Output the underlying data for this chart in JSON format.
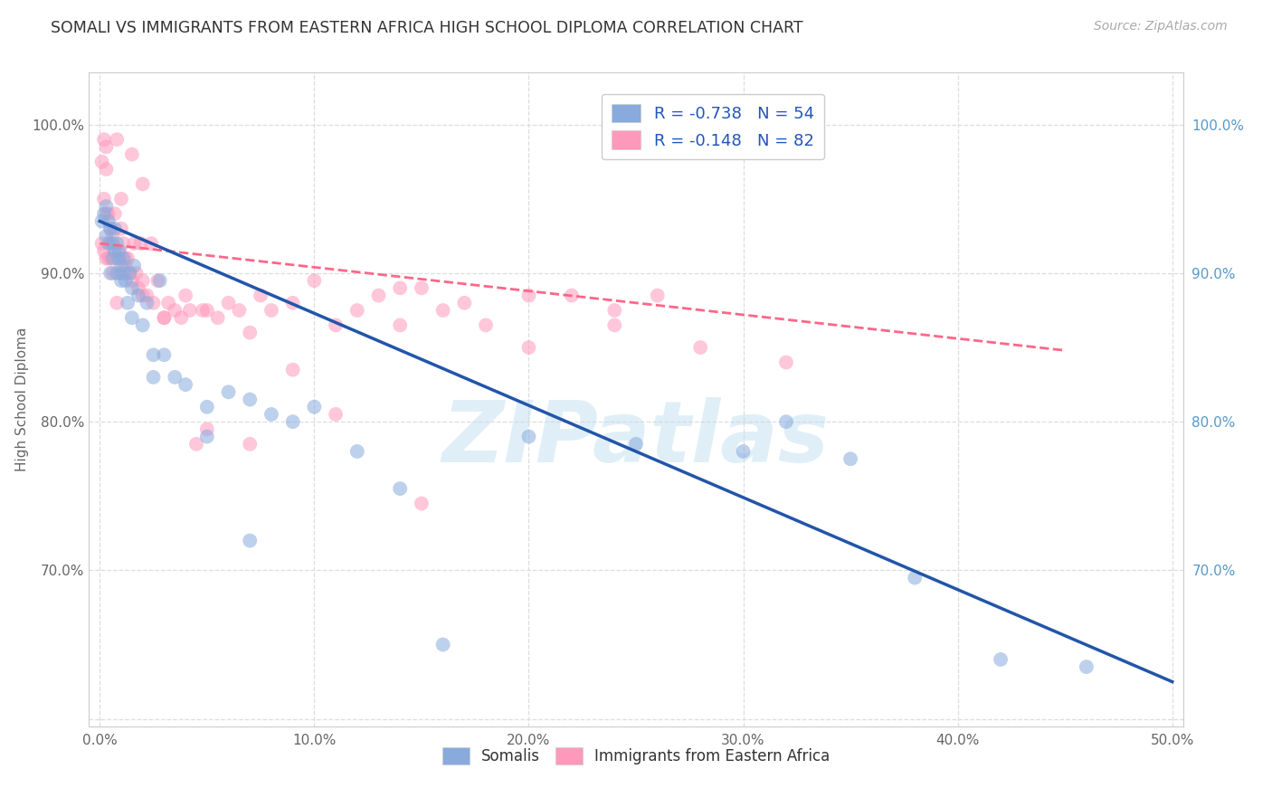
{
  "title": "SOMALI VS IMMIGRANTS FROM EASTERN AFRICA HIGH SCHOOL DIPLOMA CORRELATION CHART",
  "source": "Source: ZipAtlas.com",
  "ylabel": "High School Diploma",
  "x_tick_labels": [
    "0.0%",
    "10.0%",
    "20.0%",
    "30.0%",
    "40.0%",
    "50.0%"
  ],
  "x_tick_values": [
    0.0,
    0.1,
    0.2,
    0.3,
    0.4,
    0.5
  ],
  "y_tick_labels": [
    "",
    "70.0%",
    "80.0%",
    "90.0%",
    "100.0%"
  ],
  "y_tick_values": [
    0.6,
    0.7,
    0.8,
    0.9,
    1.0
  ],
  "xlim": [
    -0.005,
    0.505
  ],
  "ylim": [
    0.595,
    1.035
  ],
  "legend_r_blue": "-0.738",
  "legend_n_blue": "54",
  "legend_r_pink": "-0.148",
  "legend_n_pink": "82",
  "blue_scatter_color": "#88AADD",
  "pink_scatter_color": "#FF99BB",
  "blue_line_color": "#2255AA",
  "pink_line_color": "#FF6688",
  "watermark": "ZIPatlas",
  "watermark_color": "#BBDDEE",
  "background_color": "#FFFFFF",
  "grid_color": "#DDDDDD",
  "title_color": "#333333",
  "right_tick_color": "#5599CC",
  "left_tick_color": "#666666",
  "somali_x": [
    0.001,
    0.002,
    0.003,
    0.003,
    0.004,
    0.004,
    0.005,
    0.005,
    0.006,
    0.006,
    0.007,
    0.007,
    0.008,
    0.008,
    0.009,
    0.009,
    0.01,
    0.01,
    0.011,
    0.011,
    0.012,
    0.013,
    0.014,
    0.015,
    0.016,
    0.018,
    0.02,
    0.022,
    0.025,
    0.028,
    0.03,
    0.035,
    0.04,
    0.05,
    0.06,
    0.07,
    0.08,
    0.09,
    0.1,
    0.12,
    0.14,
    0.16,
    0.2,
    0.25,
    0.3,
    0.32,
    0.35,
    0.38,
    0.42,
    0.46,
    0.05,
    0.015,
    0.025,
    0.07
  ],
  "somali_y": [
    0.935,
    0.94,
    0.945,
    0.925,
    0.92,
    0.935,
    0.9,
    0.93,
    0.91,
    0.92,
    0.915,
    0.93,
    0.92,
    0.9,
    0.91,
    0.915,
    0.905,
    0.895,
    0.9,
    0.91,
    0.895,
    0.88,
    0.9,
    0.89,
    0.905,
    0.885,
    0.865,
    0.88,
    0.845,
    0.895,
    0.845,
    0.83,
    0.825,
    0.81,
    0.82,
    0.815,
    0.805,
    0.8,
    0.81,
    0.78,
    0.755,
    0.65,
    0.79,
    0.785,
    0.78,
    0.8,
    0.775,
    0.695,
    0.64,
    0.635,
    0.79,
    0.87,
    0.83,
    0.72
  ],
  "eastern_africa_x": [
    0.001,
    0.001,
    0.002,
    0.002,
    0.003,
    0.003,
    0.003,
    0.004,
    0.004,
    0.005,
    0.005,
    0.006,
    0.006,
    0.007,
    0.008,
    0.009,
    0.01,
    0.01,
    0.011,
    0.012,
    0.013,
    0.014,
    0.015,
    0.016,
    0.017,
    0.018,
    0.019,
    0.02,
    0.022,
    0.024,
    0.025,
    0.027,
    0.03,
    0.032,
    0.035,
    0.038,
    0.04,
    0.042,
    0.045,
    0.048,
    0.05,
    0.055,
    0.06,
    0.065,
    0.07,
    0.075,
    0.08,
    0.09,
    0.1,
    0.11,
    0.12,
    0.13,
    0.14,
    0.15,
    0.16,
    0.18,
    0.2,
    0.22,
    0.24,
    0.26,
    0.002,
    0.003,
    0.008,
    0.01,
    0.015,
    0.02,
    0.03,
    0.05,
    0.07,
    0.09,
    0.11,
    0.14,
    0.17,
    0.2,
    0.24,
    0.28,
    0.32,
    0.15,
    0.008,
    0.02,
    0.005,
    0.012
  ],
  "eastern_africa_y": [
    0.92,
    0.975,
    0.95,
    0.915,
    0.94,
    0.91,
    0.97,
    0.94,
    0.91,
    0.93,
    0.91,
    0.925,
    0.9,
    0.94,
    0.91,
    0.915,
    0.93,
    0.9,
    0.92,
    0.905,
    0.91,
    0.9,
    0.895,
    0.92,
    0.9,
    0.89,
    0.92,
    0.895,
    0.885,
    0.92,
    0.88,
    0.895,
    0.87,
    0.88,
    0.875,
    0.87,
    0.885,
    0.875,
    0.785,
    0.875,
    0.875,
    0.87,
    0.88,
    0.875,
    0.86,
    0.885,
    0.875,
    0.88,
    0.895,
    0.865,
    0.875,
    0.885,
    0.865,
    0.89,
    0.875,
    0.865,
    0.85,
    0.885,
    0.865,
    0.885,
    0.99,
    0.985,
    0.99,
    0.95,
    0.98,
    0.96,
    0.87,
    0.795,
    0.785,
    0.835,
    0.805,
    0.89,
    0.88,
    0.885,
    0.875,
    0.85,
    0.84,
    0.745,
    0.88,
    0.885,
    0.92,
    0.91
  ],
  "blue_line_x": [
    0.0,
    0.5
  ],
  "blue_line_y": [
    0.935,
    0.625
  ],
  "pink_line_x": [
    0.0,
    0.45
  ],
  "pink_line_y": [
    0.92,
    0.848
  ]
}
